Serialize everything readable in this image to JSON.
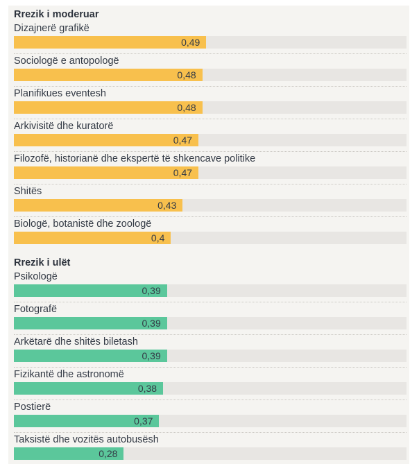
{
  "page": {
    "background_color": "#ffffff",
    "panel_background_color": "#f5f4f1"
  },
  "chart_data": {
    "type": "bar",
    "orientation": "horizontal",
    "xlim": [
      0,
      1
    ],
    "grid": false,
    "legend": false,
    "track_color": "#e8e6e3",
    "separator_style": "dotted",
    "value_decimal_separator": ",",
    "sections": [
      {
        "title": "Rrezik i moderuar",
        "bar_color": "#f8c04d",
        "items": [
          {
            "label": "Dizajnerë grafikë",
            "value": 0.49,
            "value_label": "0,49"
          },
          {
            "label": "Sociologë e antopologë",
            "value": 0.48,
            "value_label": "0,48"
          },
          {
            "label": "Planifikues eventesh",
            "value": 0.48,
            "value_label": "0,48"
          },
          {
            "label": "Arkivisitë dhe kuratorë",
            "value": 0.47,
            "value_label": "0,47"
          },
          {
            "label": "Filozofë, historianë dhe ekspertë të shkencave politike",
            "value": 0.47,
            "value_label": "0,47"
          },
          {
            "label": "Shitës",
            "value": 0.43,
            "value_label": "0,43"
          },
          {
            "label": "Biologë, botanistë dhe zoologë",
            "value": 0.4,
            "value_label": "0,4"
          }
        ]
      },
      {
        "title": "Rrezik i ulët",
        "bar_color": "#5bc79b",
        "items": [
          {
            "label": "Psikologë",
            "value": 0.39,
            "value_label": "0,39"
          },
          {
            "label": "Fotografë",
            "value": 0.39,
            "value_label": "0,39"
          },
          {
            "label": "Arkëtarë dhe shitës biletash",
            "value": 0.39,
            "value_label": "0,39"
          },
          {
            "label": "Fizikantë dhe astronomë",
            "value": 0.38,
            "value_label": "0,38"
          },
          {
            "label": "Postierë",
            "value": 0.37,
            "value_label": "0,37"
          },
          {
            "label": "Taksistë dhe vozitës autobusësh",
            "value": 0.28,
            "value_label": "0,28"
          }
        ]
      }
    ]
  }
}
